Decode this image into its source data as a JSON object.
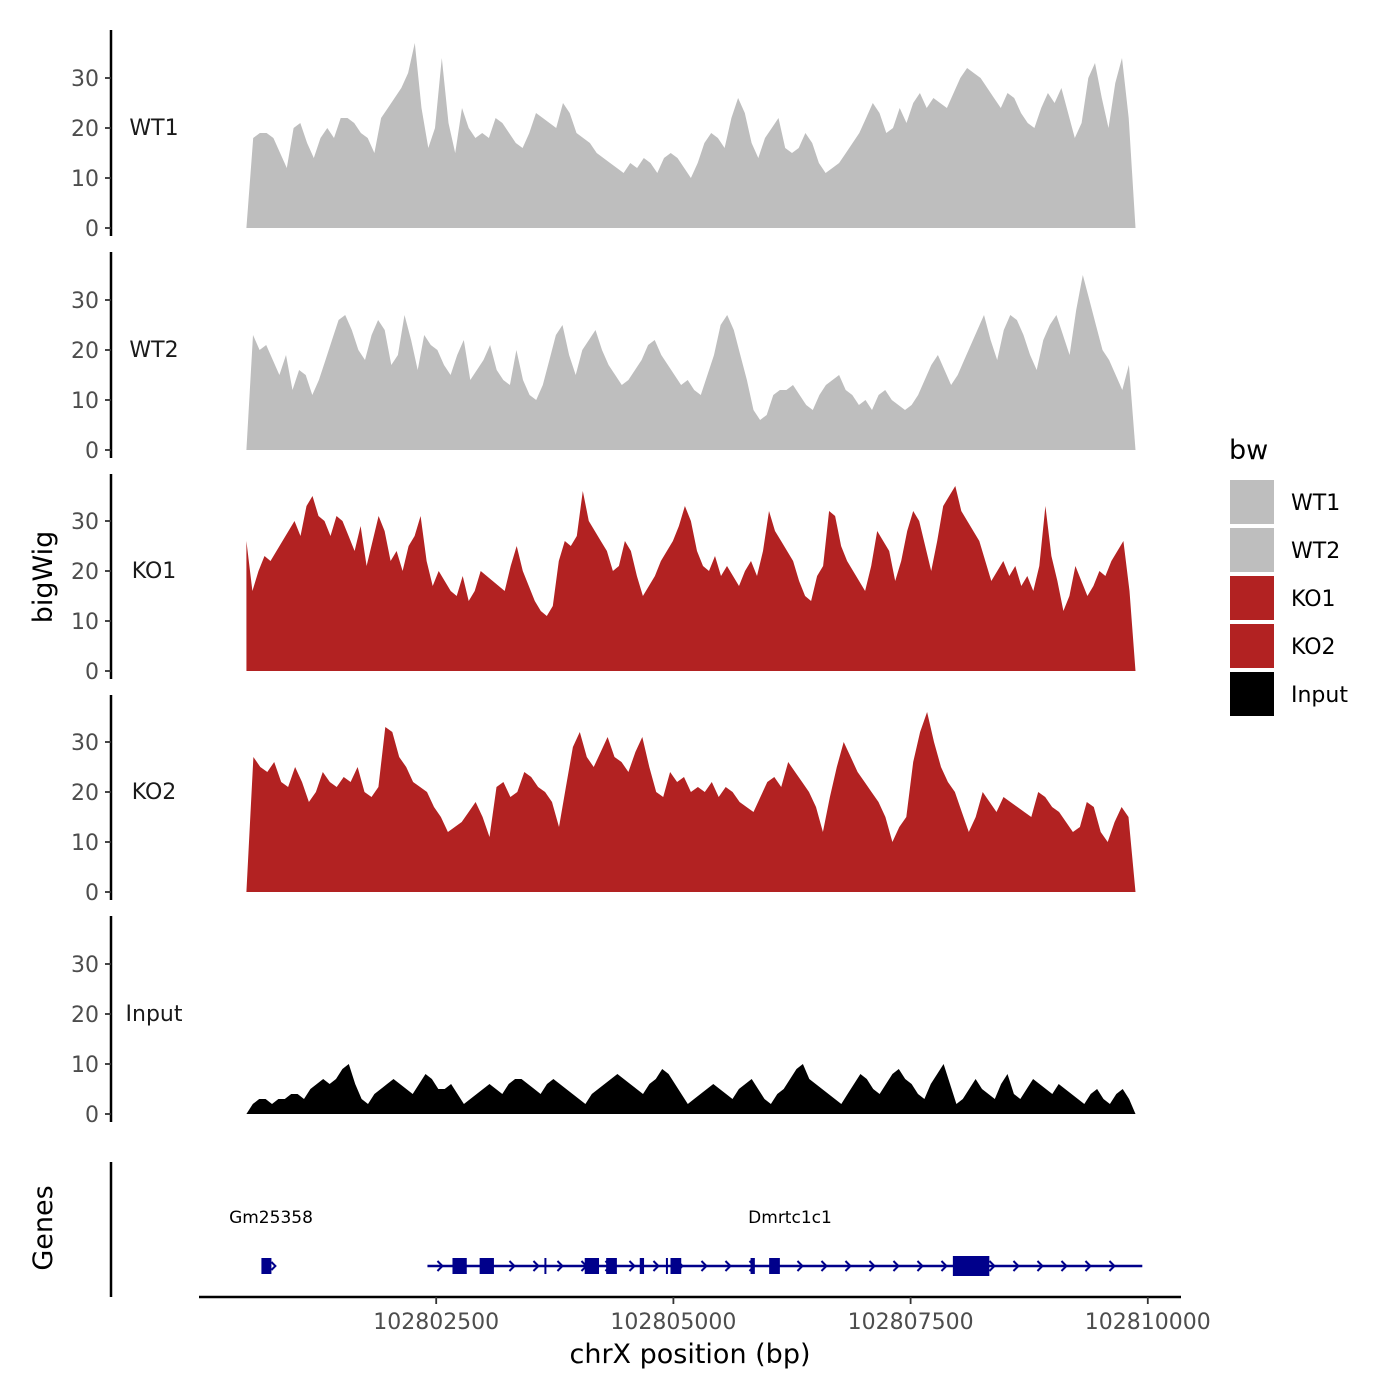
{
  "chart_data": {
    "type": "area",
    "ylabel": "bigWig",
    "xlabel": "chrX position (bp)",
    "xlim": [
      102800000,
      102810350
    ],
    "ylim": [
      0,
      39
    ],
    "yticks": [
      0,
      10,
      20,
      30
    ],
    "xticks": [
      102802500,
      102805000,
      102807500,
      102810000
    ],
    "xtick_labels": [
      "102802500",
      "102805000",
      "102807500",
      "102810000"
    ],
    "data_range": [
      102800500,
      102809870
    ],
    "legend": {
      "title": "bw",
      "position": "right",
      "entries": [
        {
          "label": "WT1",
          "color": "#BEBEBE"
        },
        {
          "label": "WT2",
          "color": "#BEBEBE"
        },
        {
          "label": "KO1",
          "color": "#B22222"
        },
        {
          "label": "KO2",
          "color": "#B22222"
        },
        {
          "label": "Input",
          "color": "#000000"
        }
      ]
    },
    "series": [
      {
        "name": "WT1",
        "color": "#BEBEBE",
        "values": [
          0,
          18,
          19,
          19,
          18,
          15,
          12,
          20,
          21,
          17,
          14,
          18,
          20,
          18,
          22,
          22,
          21,
          19,
          18,
          15,
          22,
          24,
          26,
          28,
          31,
          37,
          24,
          16,
          20,
          34,
          21,
          15,
          24,
          20,
          18,
          19,
          18,
          22,
          21,
          19,
          17,
          16,
          19,
          23,
          22,
          21,
          20,
          25,
          23,
          19,
          18,
          17,
          15,
          14,
          13,
          12,
          11,
          13,
          12,
          14,
          13,
          11,
          14,
          15,
          14,
          12,
          10,
          13,
          17,
          19,
          18,
          16,
          22,
          26,
          23,
          17,
          14,
          18,
          20,
          22,
          16,
          15,
          16,
          19,
          17,
          13,
          11,
          12,
          13,
          15,
          17,
          19,
          22,
          25,
          23,
          19,
          20,
          24,
          21,
          25,
          27,
          24,
          26,
          25,
          24,
          27,
          30,
          32,
          31,
          30,
          28,
          26,
          24,
          27,
          26,
          23,
          21,
          20,
          24,
          27,
          25,
          28,
          23,
          18,
          21,
          30,
          33,
          26,
          20,
          29,
          34,
          22,
          0
        ]
      },
      {
        "name": "WT2",
        "color": "#BEBEBE",
        "values": [
          0,
          23,
          20,
          21,
          18,
          15,
          19,
          12,
          16,
          15,
          11,
          14,
          18,
          22,
          26,
          27,
          24,
          20,
          18,
          23,
          26,
          24,
          17,
          19,
          27,
          22,
          16,
          23,
          21,
          20,
          17,
          15,
          19,
          22,
          14,
          16,
          18,
          21,
          16,
          14,
          13,
          20,
          14,
          11,
          10,
          13,
          18,
          23,
          25,
          19,
          15,
          20,
          22,
          24,
          20,
          17,
          15,
          13,
          14,
          16,
          18,
          21,
          22,
          19,
          17,
          15,
          13,
          14,
          12,
          11,
          15,
          19,
          25,
          27,
          24,
          19,
          14,
          8,
          6,
          7,
          11,
          12,
          12,
          13,
          11,
          9,
          8,
          11,
          13,
          14,
          15,
          12,
          11,
          9,
          10,
          8,
          11,
          12,
          10,
          9,
          8,
          9,
          11,
          14,
          17,
          19,
          16,
          13,
          15,
          18,
          21,
          24,
          27,
          22,
          18,
          24,
          27,
          26,
          23,
          19,
          16,
          22,
          25,
          27,
          23,
          19,
          28,
          35,
          30,
          25,
          20,
          18,
          15,
          12,
          17,
          0
        ]
      },
      {
        "name": "KO1",
        "color": "#B22222",
        "values": [
          26,
          16,
          20,
          23,
          22,
          24,
          26,
          28,
          30,
          27,
          33,
          35,
          31,
          30,
          27,
          31,
          30,
          27,
          24,
          29,
          21,
          26,
          31,
          28,
          22,
          24,
          20,
          25,
          27,
          31,
          22,
          17,
          20,
          18,
          16,
          15,
          19,
          14,
          16,
          20,
          19,
          18,
          17,
          16,
          21,
          25,
          20,
          17,
          14,
          12,
          11,
          13,
          22,
          26,
          25,
          27,
          36,
          30,
          28,
          26,
          24,
          20,
          21,
          26,
          24,
          19,
          15,
          17,
          19,
          22,
          24,
          26,
          29,
          33,
          30,
          24,
          21,
          20,
          23,
          19,
          21,
          19,
          17,
          20,
          22,
          19,
          24,
          32,
          28,
          26,
          24,
          22,
          18,
          15,
          14,
          19,
          21,
          32,
          31,
          25,
          22,
          20,
          18,
          16,
          21,
          28,
          26,
          24,
          18,
          22,
          28,
          32,
          30,
          25,
          20,
          26,
          33,
          35,
          37,
          32,
          30,
          28,
          26,
          22,
          18,
          20,
          22,
          19,
          21,
          17,
          19,
          16,
          21,
          33,
          23,
          18,
          12,
          15,
          21,
          18,
          15,
          17,
          20,
          19,
          22,
          24,
          26,
          16,
          0
        ]
      },
      {
        "name": "KO2",
        "color": "#B22222",
        "values": [
          0,
          27,
          25,
          24,
          26,
          22,
          21,
          25,
          22,
          18,
          20,
          24,
          22,
          21,
          23,
          22,
          25,
          20,
          19,
          21,
          33,
          32,
          27,
          25,
          22,
          21,
          20,
          17,
          15,
          12,
          13,
          14,
          16,
          18,
          15,
          11,
          21,
          22,
          19,
          20,
          24,
          23,
          21,
          20,
          18,
          13,
          21,
          29,
          32,
          27,
          25,
          28,
          31,
          27,
          26,
          24,
          28,
          31,
          25,
          20,
          19,
          24,
          22,
          23,
          20,
          21,
          20,
          22,
          19,
          21,
          20,
          18,
          17,
          16,
          19,
          22,
          23,
          21,
          26,
          24,
          22,
          20,
          17,
          12,
          19,
          25,
          30,
          27,
          24,
          22,
          20,
          18,
          15,
          10,
          13,
          15,
          26,
          32,
          36,
          30,
          25,
          22,
          20,
          16,
          12,
          15,
          20,
          18,
          16,
          19,
          18,
          17,
          16,
          15,
          20,
          19,
          17,
          16,
          14,
          12,
          13,
          18,
          17,
          12,
          10,
          14,
          17,
          15,
          0
        ]
      },
      {
        "name": "Input",
        "color": "#000000",
        "values": [
          0,
          2,
          3,
          3,
          2,
          3,
          3,
          4,
          4,
          3,
          5,
          6,
          7,
          6,
          7,
          9,
          10,
          6,
          3,
          2,
          4,
          5,
          6,
          7,
          6,
          5,
          4,
          6,
          8,
          7,
          5,
          5,
          6,
          4,
          2,
          3,
          4,
          5,
          6,
          5,
          4,
          6,
          7,
          7,
          6,
          5,
          4,
          6,
          7,
          6,
          5,
          4,
          3,
          2,
          4,
          5,
          6,
          7,
          8,
          7,
          6,
          5,
          4,
          6,
          7,
          9,
          8,
          6,
          4,
          2,
          3,
          4,
          5,
          6,
          5,
          4,
          3,
          5,
          6,
          7,
          5,
          3,
          2,
          4,
          5,
          7,
          9,
          10,
          7,
          6,
          5,
          4,
          3,
          2,
          4,
          6,
          8,
          7,
          5,
          4,
          6,
          8,
          9,
          7,
          6,
          4,
          3,
          6,
          8,
          10,
          6,
          2,
          3,
          5,
          7,
          5,
          4,
          3,
          6,
          8,
          4,
          3,
          5,
          7,
          6,
          5,
          4,
          6,
          5,
          4,
          3,
          2,
          4,
          5,
          3,
          2,
          4,
          5,
          3,
          0
        ]
      }
    ],
    "genes_track": {
      "label": "Genes",
      "genes": [
        {
          "name": "Gm25358",
          "start": 102800700,
          "end": 102800800,
          "color": "#00008B"
        },
        {
          "name": "Dmrtc1c1",
          "start": 102802450,
          "end": 102809900,
          "color": "#00008B"
        }
      ]
    }
  }
}
